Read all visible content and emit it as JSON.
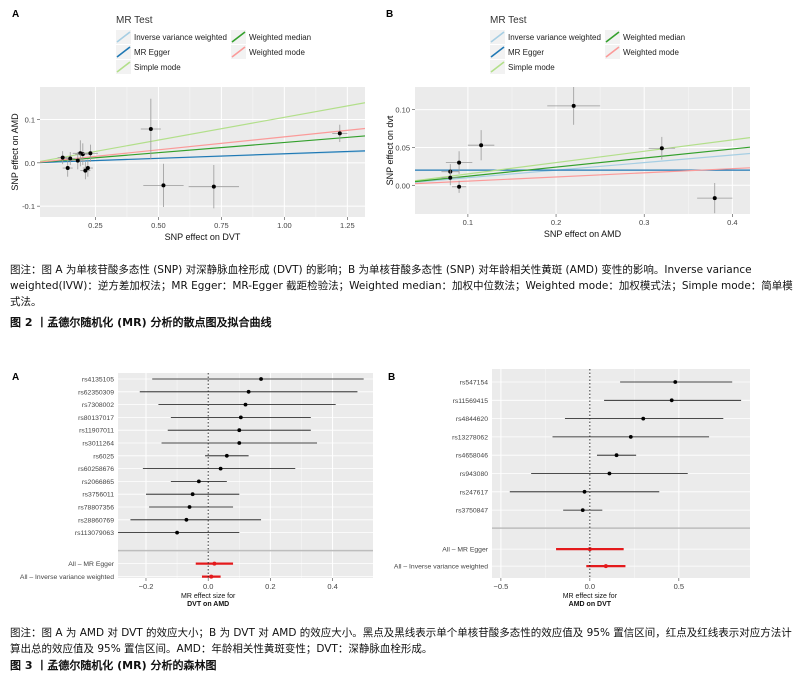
{
  "figure2": {
    "legend": {
      "title": "MR Test",
      "items": [
        {
          "label": "Inverse variance weighted",
          "color": "#a6cee3"
        },
        {
          "label": "MR Egger",
          "color": "#1f78b4"
        },
        {
          "label": "Simple mode",
          "color": "#b2df8a"
        },
        {
          "label": "Weighted median",
          "color": "#33a02c"
        },
        {
          "label": "Weighted mode",
          "color": "#fb9a99"
        }
      ]
    },
    "caption": "图注：图 A 为单核苷酸多态性 (SNP) 对深静脉血栓形成 (DVT) 的影响；B 为单核苷酸多态性 (SNP) 对年龄相关性黄斑 (AMD) 变性的影响。Inverse variance weighted(IVW)：逆方差加权法；MR Egger：MR-Egger 截距检验法；Weighted median：加权中位数法；Weighted mode：加权模式法；Simple mode：简单模式法。",
    "title": "图 2 丨孟德尔随机化 (MR) 分析的散点图及拟合曲线"
  },
  "figure3": {
    "caption": "图注：图 A 为 AMD 对 DVT 的效应大小；B 为 DVT 对 AMD 的效应大小。黑点及黑线表示单个单核苷酸多态性的效应值及 95% 置信区间，红点及红线表示对应方法计算出总的效应值及 95% 置信区间。AMD：年龄相关性黄斑变性；DVT：深静脉血栓形成。",
    "title": "图 3 丨孟德尔随机化 (MR) 分析的森林图"
  },
  "chart_data": [
    {
      "panel": "A",
      "type": "scatter",
      "xlabel": "SNP effect on DVT",
      "ylabel": "SNP effect on AMD",
      "xlim": [
        0.03,
        1.32
      ],
      "ylim": [
        -0.125,
        0.175
      ],
      "xticks": [
        0.25,
        0.5,
        0.75,
        1.0,
        1.25
      ],
      "xtick_labels": [
        "0.25",
        "0.50",
        "0.75",
        "1.00",
        "1.25"
      ],
      "yticks": [
        -0.1,
        0.0,
        0.1
      ],
      "ytick_labels": [
        "-0.1",
        "0.0",
        "0.1"
      ],
      "points": [
        {
          "x": 0.12,
          "y": 0.012,
          "xerr": 0.02,
          "yerr": 0.015
        },
        {
          "x": 0.14,
          "y": -0.012,
          "xerr": 0.02,
          "yerr": 0.02
        },
        {
          "x": 0.15,
          "y": 0.01,
          "xerr": 0.02,
          "yerr": 0.015
        },
        {
          "x": 0.18,
          "y": 0.005,
          "xerr": 0.03,
          "yerr": 0.02
        },
        {
          "x": 0.19,
          "y": 0.022,
          "xerr": 0.03,
          "yerr": 0.03
        },
        {
          "x": 0.2,
          "y": 0.02,
          "xerr": 0.03,
          "yerr": 0.025
        },
        {
          "x": 0.21,
          "y": -0.018,
          "xerr": 0.02,
          "yerr": 0.02
        },
        {
          "x": 0.22,
          "y": -0.012,
          "xerr": 0.02,
          "yerr": 0.02
        },
        {
          "x": 0.23,
          "y": 0.022,
          "xerr": 0.03,
          "yerr": 0.02
        },
        {
          "x": 0.47,
          "y": 0.078,
          "xerr": 0.04,
          "yerr": 0.07
        },
        {
          "x": 0.52,
          "y": -0.052,
          "xerr": 0.08,
          "yerr": 0.05
        },
        {
          "x": 0.72,
          "y": -0.055,
          "xerr": 0.1,
          "yerr": 0.05
        },
        {
          "x": 1.22,
          "y": 0.068,
          "xerr": 0.03,
          "yerr": 0.02
        }
      ],
      "lines": [
        {
          "method": "Inverse variance weighted",
          "intercept": 0.0,
          "slope": 0.02
        },
        {
          "method": "MR Egger",
          "intercept": 0.0,
          "slope": 0.021
        },
        {
          "method": "Simple mode",
          "intercept": 0.0,
          "slope": 0.105
        },
        {
          "method": "Weighted median",
          "intercept": 0.0,
          "slope": 0.047
        },
        {
          "method": "Weighted mode",
          "intercept": 0.0,
          "slope": 0.06
        }
      ]
    },
    {
      "panel": "B",
      "type": "scatter",
      "xlabel": "SNP effect on AMD",
      "ylabel": "SNP effect on dvt",
      "xlim": [
        0.04,
        0.42
      ],
      "ylim": [
        -0.038,
        0.13
      ],
      "xticks": [
        0.1,
        0.2,
        0.3,
        0.4
      ],
      "xtick_labels": [
        "0.1",
        "0.2",
        "0.3",
        "0.4"
      ],
      "yticks": [
        0.0,
        0.05,
        0.1
      ],
      "ytick_labels": [
        "0.00",
        "0.05",
        "0.10"
      ],
      "points": [
        {
          "x": 0.08,
          "y": 0.018,
          "xerr": 0.01,
          "yerr": 0.01
        },
        {
          "x": 0.08,
          "y": 0.01,
          "xerr": 0.01,
          "yerr": 0.01
        },
        {
          "x": 0.09,
          "y": -0.002,
          "xerr": 0.008,
          "yerr": 0.008
        },
        {
          "x": 0.09,
          "y": 0.03,
          "xerr": 0.015,
          "yerr": 0.015
        },
        {
          "x": 0.115,
          "y": 0.053,
          "xerr": 0.015,
          "yerr": 0.02
        },
        {
          "x": 0.22,
          "y": 0.105,
          "xerr": 0.03,
          "yerr": 0.025
        },
        {
          "x": 0.32,
          "y": 0.049,
          "xerr": 0.015,
          "yerr": 0.015
        },
        {
          "x": 0.38,
          "y": -0.017,
          "xerr": 0.02,
          "yerr": 0.02
        }
      ],
      "lines": [
        {
          "method": "Inverse variance weighted",
          "intercept": 0.0,
          "slope": 0.1
        },
        {
          "method": "MR Egger",
          "intercept": 0.02,
          "slope": 0.0
        },
        {
          "method": "Simple mode",
          "intercept": 0.0,
          "slope": 0.15
        },
        {
          "method": "Weighted median",
          "intercept": 0.0,
          "slope": 0.12
        },
        {
          "method": "Weighted mode",
          "intercept": 0.0,
          "slope": 0.055
        }
      ]
    },
    {
      "panel": "A",
      "type": "forest",
      "xlabel_lines": [
        "MR effect size for",
        "DVT on AMD"
      ],
      "xlim": [
        -0.29,
        0.53
      ],
      "xticks": [
        -0.2,
        0.0,
        0.2,
        0.4
      ],
      "xtick_labels": [
        "−0.2",
        "0.0",
        "0.2",
        "0.4"
      ],
      "snps": [
        {
          "label": "rs4135105",
          "est": 0.17,
          "lo": -0.18,
          "hi": 0.5
        },
        {
          "label": "rs62350309",
          "est": 0.13,
          "lo": -0.22,
          "hi": 0.48
        },
        {
          "label": "rs7308002",
          "est": 0.12,
          "lo": -0.16,
          "hi": 0.41
        },
        {
          "label": "rs80137017",
          "est": 0.105,
          "lo": -0.12,
          "hi": 0.33
        },
        {
          "label": "rs11907011",
          "est": 0.1,
          "lo": -0.13,
          "hi": 0.33
        },
        {
          "label": "rs3011264",
          "est": 0.1,
          "lo": -0.15,
          "hi": 0.35
        },
        {
          "label": "rs6025",
          "est": 0.06,
          "lo": -0.01,
          "hi": 0.13
        },
        {
          "label": "rs60258676",
          "est": 0.04,
          "lo": -0.21,
          "hi": 0.28
        },
        {
          "label": "rs2066865",
          "est": -0.03,
          "lo": -0.12,
          "hi": 0.06
        },
        {
          "label": "rs3756011",
          "est": -0.05,
          "lo": -0.2,
          "hi": 0.1
        },
        {
          "label": "rs78807356",
          "est": -0.06,
          "lo": -0.19,
          "hi": 0.08
        },
        {
          "label": "rs28860769",
          "est": -0.07,
          "lo": -0.25,
          "hi": 0.17
        },
        {
          "label": "rs113079063",
          "est": -0.1,
          "lo": -0.29,
          "hi": 0.1
        }
      ],
      "summary": [
        {
          "label": "All – MR Egger",
          "est": 0.02,
          "lo": -0.04,
          "hi": 0.08
        },
        {
          "label": "All – Inverse variance weighted",
          "est": 0.01,
          "lo": -0.02,
          "hi": 0.04
        }
      ]
    },
    {
      "panel": "B",
      "type": "forest",
      "xlabel_lines": [
        "MR effect size for",
        "AMD on DVT"
      ],
      "xlim": [
        -0.55,
        0.9
      ],
      "xticks": [
        -0.5,
        0.0,
        0.5
      ],
      "xtick_labels": [
        "−0.5",
        "0.0",
        "0.5"
      ],
      "snps": [
        {
          "label": "rs547154",
          "est": 0.48,
          "lo": 0.17,
          "hi": 0.8
        },
        {
          "label": "rs11569415",
          "est": 0.46,
          "lo": 0.08,
          "hi": 0.85
        },
        {
          "label": "rs4844620",
          "est": 0.3,
          "lo": -0.14,
          "hi": 0.75
        },
        {
          "label": "rs13278062",
          "est": 0.23,
          "lo": -0.21,
          "hi": 0.67
        },
        {
          "label": "rs4658046",
          "est": 0.15,
          "lo": 0.04,
          "hi": 0.26
        },
        {
          "label": "rs943080",
          "est": 0.11,
          "lo": -0.33,
          "hi": 0.55
        },
        {
          "label": "rs247617",
          "est": -0.03,
          "lo": -0.45,
          "hi": 0.39
        },
        {
          "label": "rs3750847",
          "est": -0.04,
          "lo": -0.15,
          "hi": 0.07
        }
      ],
      "summary": [
        {
          "label": "All – MR Egger",
          "est": 0.0,
          "lo": -0.19,
          "hi": 0.19
        },
        {
          "label": "All – Inverse variance weighted",
          "est": 0.09,
          "lo": -0.02,
          "hi": 0.2
        }
      ]
    }
  ]
}
